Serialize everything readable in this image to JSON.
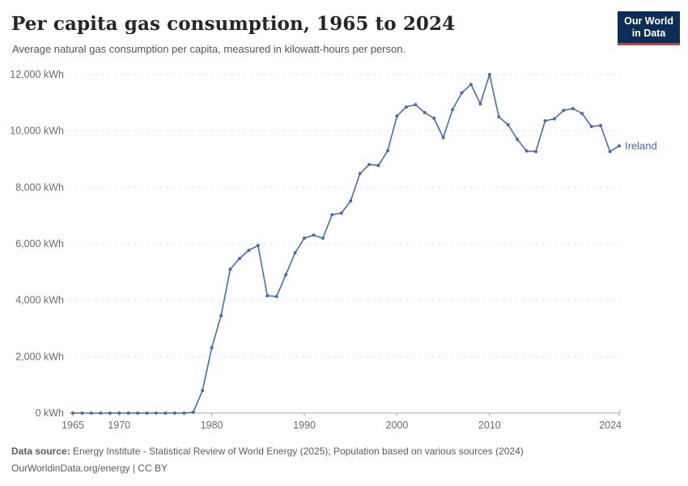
{
  "header": {
    "title": "Per capita gas consumption, 1965 to 2024",
    "subtitle": "Average natural gas consumption per capita, measured in kilowatt-hours per person.",
    "logo": {
      "line1": "Our World",
      "line2": "in Data",
      "bg_color": "#0c2d56",
      "accent_color": "#dc3a2e"
    }
  },
  "footer": {
    "source_label": "Data source:",
    "source_text": " Energy Institute - Statistical Review of World Energy (2025); Population based on various sources (2024)",
    "link": "OurWorldinData.org/energy",
    "license_suffix": " | CC BY"
  },
  "chart_data": {
    "type": "line",
    "title": "Per capita gas consumption, 1965 to 2024",
    "xlabel": "",
    "ylabel": "",
    "unit": "kWh",
    "grid": true,
    "legend_position": "end-of-line",
    "xlim": [
      1965,
      2024
    ],
    "ylim": [
      0,
      12000
    ],
    "xticks": [
      {
        "value": 1965,
        "label": "1965"
      },
      {
        "value": 1970,
        "label": "1970"
      },
      {
        "value": 1980,
        "label": "1980"
      },
      {
        "value": 1990,
        "label": "1990"
      },
      {
        "value": 2000,
        "label": "2000"
      },
      {
        "value": 2010,
        "label": "2010"
      },
      {
        "value": 2024,
        "label": "2024"
      }
    ],
    "yticks": [
      {
        "value": 0,
        "label": "0 kWh"
      },
      {
        "value": 2000,
        "label": "2,000 kWh"
      },
      {
        "value": 4000,
        "label": "4,000 kWh"
      },
      {
        "value": 6000,
        "label": "6,000 kWh"
      },
      {
        "value": 8000,
        "label": "8,000 kWh"
      },
      {
        "value": 10000,
        "label": "10,000 kWh"
      },
      {
        "value": 12000,
        "label": "12,000 kWh"
      }
    ],
    "colors": {
      "line": "#4a6caa",
      "gridline": "#e0e0e0",
      "axis": "#a8a8a8",
      "tick_text": "#6b6b6b"
    },
    "series": [
      {
        "name": "Ireland",
        "color": "#4a6caa",
        "x": [
          1965,
          1966,
          1967,
          1968,
          1969,
          1970,
          1971,
          1972,
          1973,
          1974,
          1975,
          1976,
          1977,
          1978,
          1979,
          1980,
          1981,
          1982,
          1983,
          1984,
          1985,
          1986,
          1987,
          1988,
          1989,
          1990,
          1991,
          1992,
          1993,
          1994,
          1995,
          1996,
          1997,
          1998,
          1999,
          2000,
          2001,
          2002,
          2003,
          2004,
          2005,
          2006,
          2007,
          2008,
          2009,
          2010,
          2011,
          2012,
          2013,
          2014,
          2015,
          2016,
          2017,
          2018,
          2019,
          2020,
          2021,
          2022,
          2023,
          2024
        ],
        "values": [
          0,
          0,
          0,
          0,
          0,
          0,
          0,
          0,
          0,
          0,
          0,
          0,
          0,
          30,
          800,
          2320,
          3450,
          5100,
          5480,
          5770,
          5940,
          4160,
          4130,
          4900,
          5680,
          6200,
          6310,
          6200,
          7030,
          7090,
          7520,
          8490,
          8810,
          8780,
          9300,
          10530,
          10850,
          10930,
          10650,
          10450,
          9760,
          10760,
          11350,
          11650,
          10960,
          12000,
          10500,
          10220,
          9700,
          9290,
          9270,
          10360,
          10430,
          10730,
          10790,
          10620,
          10160,
          10190,
          9270,
          9470
        ]
      }
    ]
  }
}
